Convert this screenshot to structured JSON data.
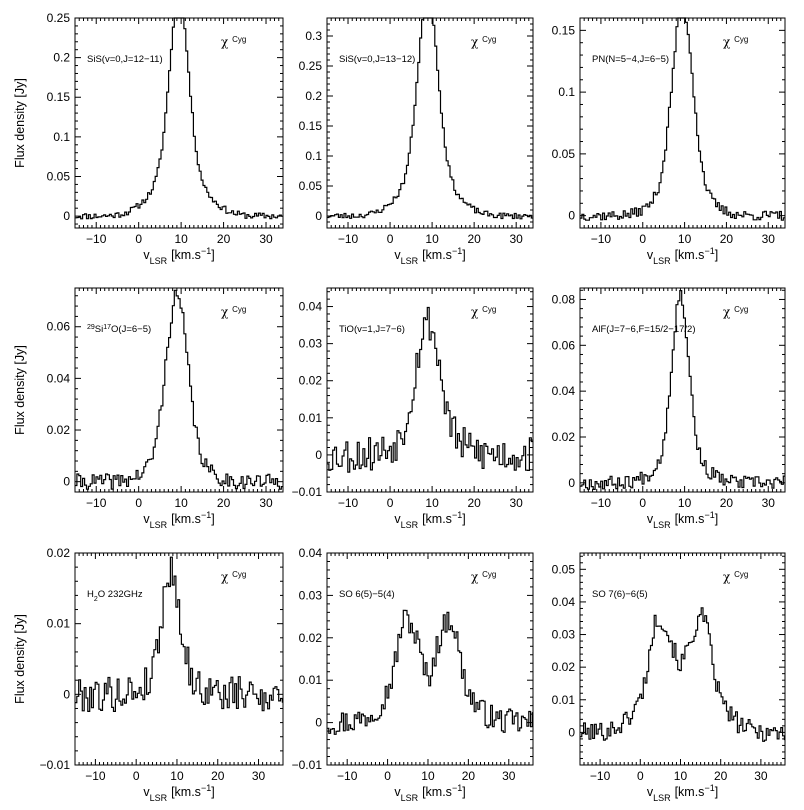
{
  "figure": {
    "ylabel": "Flux density [Jy]",
    "xlabel_main": "v",
    "xlabel_sub": "LSR",
    "xlabel_units": "[km.s",
    "xlabel_exp": "−1",
    "xlabel_close": "]",
    "star_symbol": "χ",
    "star_name": "Cyg"
  },
  "chart_data": [
    {
      "type": "line",
      "title": "SiS(v=0,J=12–11)",
      "label_parts": [
        {
          "t": "SiS(v=0,J=12−11)"
        }
      ],
      "xlabel": "vLSR [km.s-1]",
      "ylabel": "Flux density [Jy]",
      "xlim": [
        -15,
        34
      ],
      "ylim": [
        -0.015,
        0.25
      ],
      "xticks": [
        -10,
        0,
        10,
        20,
        30
      ],
      "xtick_labels": [
        "−10",
        "0",
        "10",
        "20",
        "30"
      ],
      "yticks": [
        0,
        0.05,
        0.1,
        0.15,
        0.2,
        0.25
      ],
      "ytick_labels": [
        "0",
        "0.05",
        "0.1",
        "0.15",
        "0.2",
        "0.25"
      ],
      "series": [
        {
          "name": "SiS(v=0,J=12-11)",
          "profile": {
            "center": 9.5,
            "peak": 0.215,
            "core_sigma": 2.2,
            "wing_amp": 0.06,
            "wing_sigma": 5.5,
            "noise": 0.004,
            "dip": 0,
            "seed": 11
          }
        }
      ]
    },
    {
      "type": "line",
      "title": "SiS(v=0,J=13–12)",
      "label_parts": [
        {
          "t": "SiS(v=0,J=13−12)"
        }
      ],
      "xlabel": "vLSR [km.s-1]",
      "ylabel": "",
      "xlim": [
        -15,
        34
      ],
      "ylim": [
        -0.02,
        0.33
      ],
      "xticks": [
        -10,
        0,
        10,
        20,
        30
      ],
      "xtick_labels": [
        "−10",
        "0",
        "10",
        "20",
        "30"
      ],
      "yticks": [
        0,
        0.05,
        0.1,
        0.15,
        0.2,
        0.25,
        0.3
      ],
      "ytick_labels": [
        "0",
        "0.05",
        "0.1",
        "0.15",
        "0.2",
        "0.25",
        "0.3"
      ],
      "series": [
        {
          "name": "SiS(v=0,J=13-12)",
          "profile": {
            "center": 9,
            "peak": 0.29,
            "core_sigma": 2.3,
            "wing_amp": 0.08,
            "wing_sigma": 5.5,
            "noise": 0.005,
            "dip": 0,
            "seed": 23
          }
        }
      ]
    },
    {
      "type": "line",
      "title": "PN(N=5–4,J=6–5)",
      "label_parts": [
        {
          "t": "PN(N=5−4,J=6−5)"
        }
      ],
      "xlabel": "vLSR [km.s-1]",
      "ylabel": "",
      "xlim": [
        -15,
        34
      ],
      "ylim": [
        -0.01,
        0.16
      ],
      "xticks": [
        -10,
        0,
        10,
        20,
        30
      ],
      "xtick_labels": [
        "−10",
        "0",
        "10",
        "20",
        "30"
      ],
      "yticks": [
        0,
        0.05,
        0.1,
        0.15
      ],
      "ytick_labels": [
        "0",
        "0.05",
        "0.1",
        "0.15"
      ],
      "series": [
        {
          "name": "PN(N=5-4,J=6-5)",
          "profile": {
            "center": 9.5,
            "peak": 0.14,
            "core_sigma": 2.4,
            "wing_amp": 0.03,
            "wing_sigma": 5,
            "noise": 0.004,
            "dip": 0,
            "seed": 37
          }
        }
      ]
    },
    {
      "type": "line",
      "title": "29Si17O(J=6–5)",
      "label_parts": [
        {
          "t": "29",
          "sup": true
        },
        {
          "t": "Si"
        },
        {
          "t": "17",
          "sup": true
        },
        {
          "t": "O(J=6−5)"
        }
      ],
      "xlabel": "vLSR [km.s-1]",
      "ylabel": "Flux density [Jy]",
      "xlim": [
        -15,
        34
      ],
      "ylim": [
        -0.004,
        0.075
      ],
      "xticks": [
        -10,
        0,
        10,
        20,
        30
      ],
      "xtick_labels": [
        "−10",
        "0",
        "10",
        "20",
        "30"
      ],
      "yticks": [
        0,
        0.02,
        0.04,
        0.06
      ],
      "ytick_labels": [
        "0",
        "0.02",
        "0.04",
        "0.06"
      ],
      "series": [
        {
          "name": "29Si17O(J=6-5)",
          "profile": {
            "center": 9,
            "peak": 0.06,
            "core_sigma": 2.5,
            "wing_amp": 0.012,
            "wing_sigma": 5,
            "noise": 0.003,
            "dip": 0,
            "seed": 41
          }
        }
      ]
    },
    {
      "type": "line",
      "title": "TiO(v=1,J=7–6)",
      "label_parts": [
        {
          "t": "TiO(v=1,J=7−6)"
        }
      ],
      "xlabel": "vLSR [km.s-1]",
      "ylabel": "",
      "xlim": [
        -15,
        34
      ],
      "ylim": [
        -0.01,
        0.045
      ],
      "xticks": [
        -10,
        0,
        10,
        20,
        30
      ],
      "xtick_labels": [
        "−10",
        "0",
        "10",
        "20",
        "30"
      ],
      "yticks": [
        -0.01,
        0,
        0.01,
        0.02,
        0.03,
        0.04
      ],
      "ytick_labels": [
        "−0.01",
        "0",
        "0.01",
        "0.02",
        "0.03",
        "0.04"
      ],
      "series": [
        {
          "name": "TiO(v=1,J=7-6)",
          "profile": {
            "center": 9,
            "peak": 0.03,
            "core_sigma": 2.8,
            "wing_amp": 0.006,
            "wing_sigma": 6,
            "noise": 0.005,
            "dip": 0,
            "seed": 53
          }
        }
      ]
    },
    {
      "type": "line",
      "title": "AlF(J=7–6,F=15/2–17/2)",
      "label_parts": [
        {
          "t": "AlF(J=7−6,F=15/2−17/2)"
        }
      ],
      "xlabel": "vLSR [km.s-1]",
      "ylabel": "",
      "xlim": [
        -15,
        34
      ],
      "ylim": [
        -0.004,
        0.085
      ],
      "xticks": [
        -10,
        0,
        10,
        20,
        30
      ],
      "xtick_labels": [
        "−10",
        "0",
        "10",
        "20",
        "30"
      ],
      "yticks": [
        0,
        0.02,
        0.04,
        0.06,
        0.08
      ],
      "ytick_labels": [
        "0",
        "0.02",
        "0.04",
        "0.06",
        "0.08"
      ],
      "series": [
        {
          "name": "AlF(J=7-6,F=15/2-17/2)",
          "profile": {
            "center": 9,
            "peak": 0.07,
            "core_sigma": 2.0,
            "wing_amp": 0.012,
            "wing_sigma": 5,
            "noise": 0.003,
            "dip": 0,
            "seed": 67
          }
        }
      ]
    },
    {
      "type": "line",
      "title": "H2O 232GHz",
      "label_parts": [
        {
          "t": "H"
        },
        {
          "t": "2",
          "sub": true
        },
        {
          "t": "O 232GHz"
        }
      ],
      "xlabel": "vLSR [km.s-1]",
      "ylabel": "Flux density [Jy]",
      "xlim": [
        -15,
        36
      ],
      "ylim": [
        -0.01,
        0.02
      ],
      "xticks": [
        -10,
        0,
        10,
        20,
        30
      ],
      "xtick_labels": [
        "−10",
        "0",
        "10",
        "20",
        "30"
      ],
      "yticks": [
        -0.01,
        0,
        0.01,
        0.02
      ],
      "ytick_labels": [
        "−0.01",
        "0",
        "0.01",
        "0.02"
      ],
      "series": [
        {
          "name": "H2O 232GHz",
          "profile": {
            "center": 8.5,
            "peak": 0.015,
            "core_sigma": 2.2,
            "wing_amp": 0.0025,
            "wing_sigma": 5,
            "noise": 0.0025,
            "dip": 0,
            "seed": 79
          }
        }
      ]
    },
    {
      "type": "line",
      "title": "SO 6(5)–5(4)",
      "label_parts": [
        {
          "t": "SO 6(5)−5(4)"
        }
      ],
      "xlabel": "vLSR [km.s-1]",
      "ylabel": "",
      "xlim": [
        -15,
        36
      ],
      "ylim": [
        -0.01,
        0.04
      ],
      "xticks": [
        -10,
        0,
        10,
        20,
        30
      ],
      "xtick_labels": [
        "−10",
        "0",
        "10",
        "20",
        "30"
      ],
      "yticks": [
        -0.01,
        0,
        0.01,
        0.02,
        0.03,
        0.04
      ],
      "ytick_labels": [
        "−0.01",
        "0",
        "0.01",
        "0.02",
        "0.03",
        "0.04"
      ],
      "series": [
        {
          "name": "SO 6(5)-5(4)",
          "profile": {
            "center": 10,
            "peak": 0.032,
            "core_sigma": 6.5,
            "wing_amp": 0.0,
            "wing_sigma": 6,
            "noise": 0.003,
            "dip": 0.012,
            "seed": 97
          }
        }
      ]
    },
    {
      "type": "line",
      "title": "SO 7(6)–6(5)",
      "label_parts": [
        {
          "t": "SO 7(6)−6(5)"
        }
      ],
      "xlabel": "vLSR [km.s-1]",
      "ylabel": "",
      "xlim": [
        -15,
        36
      ],
      "ylim": [
        -0.01,
        0.055
      ],
      "xticks": [
        -10,
        0,
        10,
        20,
        30
      ],
      "xtick_labels": [
        "−10",
        "0",
        "10",
        "20",
        "30"
      ],
      "yticks": [
        0,
        0.01,
        0.02,
        0.03,
        0.04,
        0.05
      ],
      "ytick_labels": [
        "0",
        "0.01",
        "0.02",
        "0.03",
        "0.04",
        "0.05"
      ],
      "series": [
        {
          "name": "SO 7(6)-6(5)",
          "profile": {
            "center": 10,
            "peak": 0.046,
            "core_sigma": 6.5,
            "wing_amp": 0.0,
            "wing_sigma": 6,
            "noise": 0.003,
            "dip": 0.012,
            "seed": 101
          }
        }
      ]
    }
  ]
}
